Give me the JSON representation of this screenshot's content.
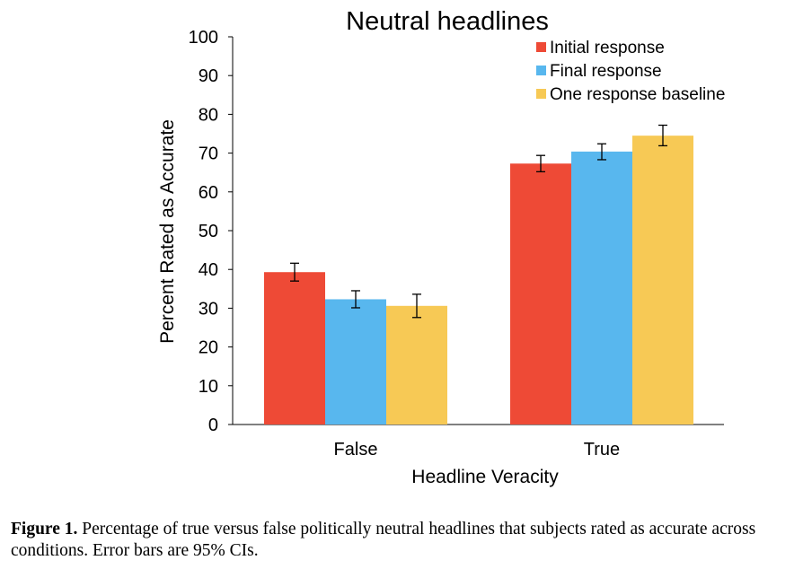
{
  "chart_data": {
    "type": "bar",
    "title": "Neutral headlines",
    "xlabel": "Headline Veracity",
    "ylabel": "Percent Rated as Accurate",
    "categories": [
      "False",
      "True"
    ],
    "ylim": [
      0,
      100
    ],
    "yticks": [
      "0",
      "10",
      "20",
      "30",
      "40",
      "50",
      "60",
      "70",
      "80",
      "90",
      "100"
    ],
    "grid": false,
    "legend_position": "top-right",
    "series": [
      {
        "name": "Initial response",
        "color": "#EE4A36",
        "values": [
          39.3,
          67.3
        ],
        "ci_low": [
          37.0,
          65.2
        ],
        "ci_high": [
          41.6,
          69.4
        ]
      },
      {
        "name": "Final response",
        "color": "#58B7EE",
        "values": [
          32.3,
          70.4
        ],
        "ci_low": [
          30.1,
          68.3
        ],
        "ci_high": [
          34.5,
          72.4
        ]
      },
      {
        "name": "One response baseline",
        "color": "#F7C955",
        "values": [
          30.6,
          74.5
        ],
        "ci_low": [
          27.6,
          71.9
        ],
        "ci_high": [
          33.6,
          77.2
        ]
      }
    ]
  },
  "caption": {
    "label": "Figure 1.",
    "text": " Percentage of true versus false politically neutral headlines that subjects rated as accurate across conditions. Error bars are 95% CIs."
  }
}
